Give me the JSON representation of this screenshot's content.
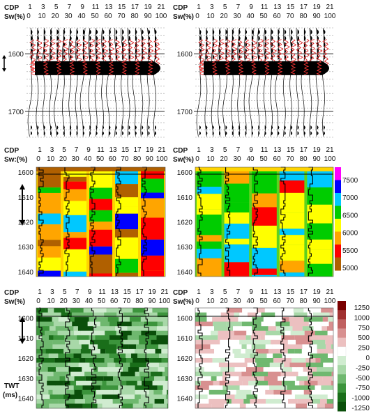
{
  "panels": [
    {
      "id": "p1",
      "type": "wiggle",
      "cdp_label": "CDP",
      "sw_label": "Sw(%)",
      "cdp_ticks": [
        "1",
        "3",
        "5",
        "7",
        "9",
        "11",
        "13",
        "15",
        "17",
        "19",
        "21"
      ],
      "sw_ticks": [
        "0",
        "10",
        "20",
        "30",
        "40",
        "50",
        "60",
        "70",
        "80",
        "90",
        "100"
      ],
      "time_ticks": [
        "1600",
        "1700"
      ],
      "time_range": [
        1555,
        1745
      ],
      "show_arrow": true
    },
    {
      "id": "p2",
      "type": "wiggle",
      "cdp_label": "CDP",
      "sw_label": "Sw(%)",
      "cdp_ticks": [
        "1",
        "3",
        "5",
        "7",
        "9",
        "11",
        "13",
        "15",
        "17",
        "19",
        "21"
      ],
      "sw_ticks": [
        "0",
        "10",
        "20",
        "30",
        "40",
        "50",
        "60",
        "70",
        "80",
        "90",
        "100"
      ],
      "time_ticks": [
        "1600",
        "1700"
      ],
      "time_range": [
        1555,
        1745
      ],
      "show_arrow": false
    },
    {
      "id": "p3",
      "type": "velocity",
      "cdp_label": "CDP",
      "sw_label": "Sw:(%)",
      "cdp_ticks": [
        "1",
        "3",
        "5",
        "7",
        "9",
        "11",
        "13",
        "15",
        "17",
        "19",
        "21"
      ],
      "sw_ticks": [
        "0",
        "10",
        "20",
        "30",
        "40",
        "50",
        "60",
        "70",
        "80",
        "90",
        "100"
      ],
      "time_ticks": [
        "1600",
        "1610",
        "1620",
        "1630",
        "1640"
      ],
      "time_range": [
        1598,
        1642
      ],
      "show_arrow": true
    },
    {
      "id": "p4",
      "type": "velocity",
      "cdp_label": "CDP",
      "sw_label": "Sw(%)",
      "cdp_ticks": [
        "1",
        "3",
        "5",
        "7",
        "9",
        "11",
        "13",
        "15",
        "17",
        "19",
        "21"
      ],
      "sw_ticks": [
        "0",
        "10",
        "20",
        "30",
        "40",
        "50",
        "60",
        "70",
        "80",
        "90",
        "100"
      ],
      "time_ticks": [
        "1600",
        "1610",
        "1620",
        "1630",
        "1640"
      ],
      "time_range": [
        1598,
        1642
      ],
      "show_arrow": false
    },
    {
      "id": "p5",
      "type": "difference",
      "cdp_label": "CDP",
      "sw_label": "Sw(%)",
      "cdp_ticks": [
        "1",
        "3",
        "5",
        "7",
        "9",
        "11",
        "13",
        "15",
        "17",
        "19",
        "21"
      ],
      "sw_ticks": [
        "0",
        "10",
        "20",
        "30",
        "40",
        "50",
        "60",
        "70",
        "80",
        "90",
        "100"
      ],
      "time_ticks": [
        "1600",
        "1610",
        "1620",
        "1630",
        "1640"
      ],
      "time_range": [
        1595,
        1645
      ],
      "show_arrow": true,
      "y_label": [
        "TWT",
        "(ms)"
      ]
    },
    {
      "id": "p6",
      "type": "difference",
      "cdp_label": "CDP",
      "sw_label": "Sw(%)",
      "cdp_ticks": [
        "1",
        "3",
        "5",
        "7",
        "9",
        "11",
        "13",
        "15",
        "17",
        "19",
        "21"
      ],
      "sw_ticks": [
        "0",
        "10",
        "20",
        "30",
        "40",
        "50",
        "60",
        "70",
        "80",
        "90",
        "100"
      ],
      "time_ticks": [
        "1600",
        "1610",
        "1620",
        "1630",
        "1640"
      ],
      "time_range": [
        1595,
        1645
      ],
      "show_arrow": false
    }
  ],
  "velocity_colorbar": {
    "labels": [
      "7500",
      "7000",
      "6500",
      "6000",
      "5500",
      "5000"
    ],
    "colors": [
      "#ff00ff",
      "#0000ff",
      "#00c8ff",
      "#00cc00",
      "#ffff00",
      "#ffa500",
      "#ff0000",
      "#b06000"
    ]
  },
  "difference_colorbar": {
    "labels": [
      "1250",
      "1000",
      "750",
      "500",
      "250",
      "0",
      "-250",
      "-500",
      "-750",
      "-1000",
      "-1250"
    ],
    "colors": [
      "#7a0000",
      "#a03030",
      "#c06060",
      "#d89090",
      "#ecc0c0",
      "#ffffff",
      "#d0ecd0",
      "#a8d8a8",
      "#6fb86f",
      "#3c943c",
      "#1a6e1a",
      "#0a4f0a"
    ]
  }
}
